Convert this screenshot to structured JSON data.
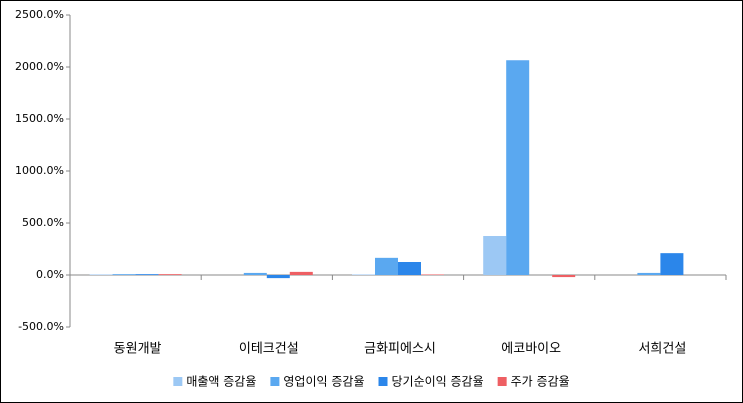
{
  "chart_data": {
    "type": "bar",
    "categories": [
      "동원개발",
      "이테크건설",
      "금화피에스시",
      "에코바이오",
      "서희건설"
    ],
    "series": [
      {
        "name": "매출액 증감율",
        "color": "#9cc8f4",
        "values": [
          5,
          0,
          5,
          375,
          0
        ]
      },
      {
        "name": "영업이익 증감율",
        "color": "#5aa8f0",
        "values": [
          8,
          20,
          165,
          2065,
          20
        ]
      },
      {
        "name": "당기순이익 증감율",
        "color": "#2b86ea",
        "values": [
          8,
          -30,
          125,
          0,
          210
        ]
      },
      {
        "name": "주가 증감율",
        "color": "#ee5f63",
        "values": [
          8,
          30,
          5,
          -20,
          0
        ]
      }
    ],
    "ylim": [
      -500,
      2500
    ],
    "yticks": [
      {
        "value": -500,
        "label": "-500.0%"
      },
      {
        "value": 0,
        "label": "0.0%"
      },
      {
        "value": 500,
        "label": "500.0%"
      },
      {
        "value": 1000,
        "label": "1000.0%"
      },
      {
        "value": 1500,
        "label": "1500.0%"
      },
      {
        "value": 2000,
        "label": "2000.0%"
      },
      {
        "value": 2500,
        "label": "2500.0%"
      }
    ],
    "legend": "bottom"
  }
}
